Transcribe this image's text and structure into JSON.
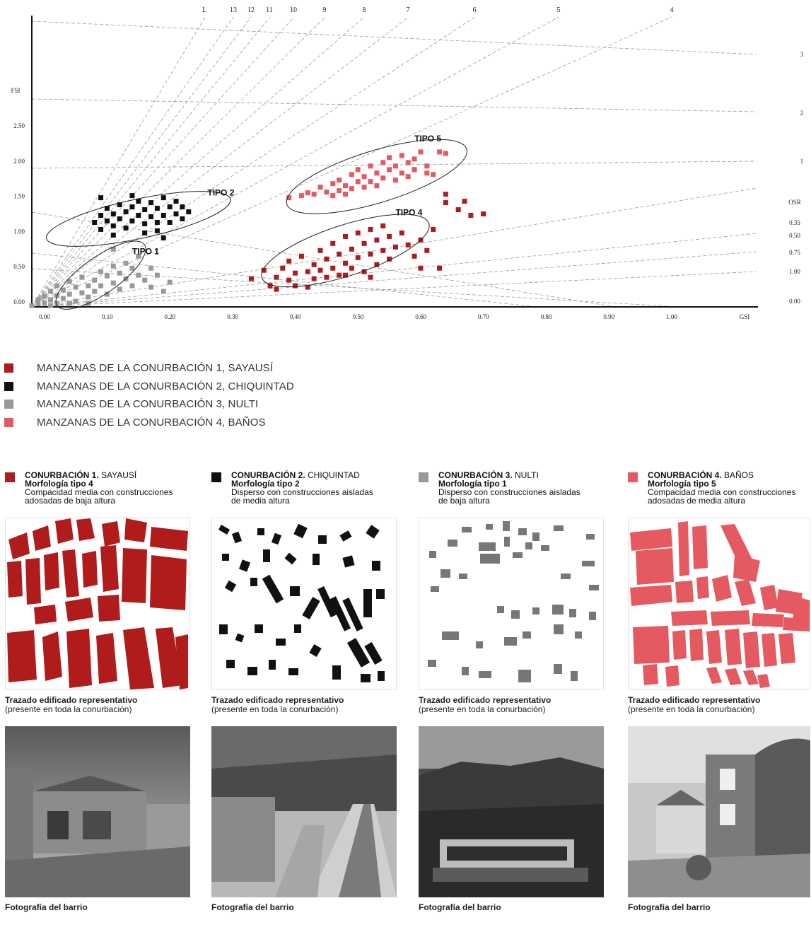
{
  "chart_data": {
    "type": "scatter",
    "xlabel": "GSI",
    "ylabel": "FSI",
    "xlim": [
      0,
      1.1
    ],
    "ylim": [
      0,
      2.5
    ],
    "x_ticks": [
      "0.00",
      "0.10",
      "0.20",
      "0.30",
      "0.40",
      "0.50",
      "0.60",
      "0.70",
      "0.80",
      "0.90",
      "1.00"
    ],
    "y_ticks": [
      "0.00",
      "0.50",
      "1.00",
      "1.50",
      "2.00",
      "2.50"
    ],
    "layer_label": "L",
    "layer_lines": [
      "13",
      "12",
      "11",
      "10",
      "9",
      "8",
      "7",
      "6",
      "5",
      "4"
    ],
    "osr_label": "OSR",
    "osr_lines": [
      "3",
      "2",
      "1",
      "0.35",
      "0.50",
      "0.75",
      "1.00",
      "0.00"
    ],
    "groups": [
      {
        "label": "TIPO 1",
        "center": [
          0.11,
          0.45
        ],
        "rx": 0.085,
        "ry": 0.26,
        "angle_deg": 35
      },
      {
        "label": "TIPO 2",
        "center": [
          0.17,
          1.25
        ],
        "rx": 0.15,
        "ry": 0.28,
        "angle_deg": 12
      },
      {
        "label": "TIPO 4",
        "center": [
          0.5,
          0.8
        ],
        "rx": 0.14,
        "ry": 0.36,
        "angle_deg": 18
      },
      {
        "label": "TIPO 5",
        "center": [
          0.55,
          1.85
        ],
        "rx": 0.15,
        "ry": 0.37,
        "angle_deg": 17
      }
    ],
    "series": [
      {
        "name": "MANZANAS DE LA CONURBACIÓN 1, SAYAUSÍ",
        "color": "#b01c1c",
        "points": [
          [
            0.35,
            0.4
          ],
          [
            0.37,
            0.52
          ],
          [
            0.38,
            0.3
          ],
          [
            0.39,
            0.42
          ],
          [
            0.39,
            0.25
          ],
          [
            0.4,
            0.55
          ],
          [
            0.41,
            0.38
          ],
          [
            0.41,
            0.65
          ],
          [
            0.42,
            0.48
          ],
          [
            0.42,
            0.3
          ],
          [
            0.43,
            0.72
          ],
          [
            0.44,
            0.5
          ],
          [
            0.44,
            0.28
          ],
          [
            0.45,
            0.6
          ],
          [
            0.45,
            0.4
          ],
          [
            0.46,
            0.8
          ],
          [
            0.46,
            0.52
          ],
          [
            0.47,
            0.42
          ],
          [
            0.47,
            0.68
          ],
          [
            0.48,
            0.9
          ],
          [
            0.48,
            0.55
          ],
          [
            0.49,
            0.45
          ],
          [
            0.49,
            0.75
          ],
          [
            0.5,
            1.0
          ],
          [
            0.5,
            0.62
          ],
          [
            0.5,
            0.45
          ],
          [
            0.51,
            0.82
          ],
          [
            0.51,
            0.55
          ],
          [
            0.52,
            1.05
          ],
          [
            0.52,
            0.7
          ],
          [
            0.53,
            0.5
          ],
          [
            0.53,
            0.9
          ],
          [
            0.54,
            1.1
          ],
          [
            0.54,
            0.75
          ],
          [
            0.54,
            0.42
          ],
          [
            0.55,
            0.6
          ],
          [
            0.55,
            0.95
          ],
          [
            0.56,
            0.8
          ],
          [
            0.56,
            1.15
          ],
          [
            0.57,
            0.68
          ],
          [
            0.57,
            1.0
          ],
          [
            0.58,
            0.85
          ],
          [
            0.59,
            1.05
          ],
          [
            0.6,
            0.88
          ],
          [
            0.61,
            0.72
          ],
          [
            0.62,
            0.95
          ],
          [
            0.63,
            0.8
          ],
          [
            0.64,
            1.1
          ],
          [
            0.62,
            0.55
          ],
          [
            0.65,
            0.55
          ],
          [
            0.66,
            1.6
          ],
          [
            0.66,
            1.48
          ],
          [
            0.68,
            1.38
          ],
          [
            0.69,
            1.5
          ],
          [
            0.7,
            1.3
          ],
          [
            0.72,
            1.32
          ]
        ]
      },
      {
        "name": "MANZANAS DE LA CONURBACIÓN 2, CHIQUINTAD",
        "color": "#111111",
        "points": [
          [
            0.1,
            1.2
          ],
          [
            0.11,
            1.3
          ],
          [
            0.11,
            1.1
          ],
          [
            0.12,
            1.4
          ],
          [
            0.12,
            1.22
          ],
          [
            0.13,
            1.32
          ],
          [
            0.13,
            1.15
          ],
          [
            0.14,
            1.45
          ],
          [
            0.14,
            1.25
          ],
          [
            0.15,
            1.35
          ],
          [
            0.15,
            1.12
          ],
          [
            0.16,
            1.42
          ],
          [
            0.16,
            1.22
          ],
          [
            0.17,
            1.3
          ],
          [
            0.17,
            1.5
          ],
          [
            0.18,
            1.18
          ],
          [
            0.18,
            1.38
          ],
          [
            0.19,
            1.28
          ],
          [
            0.19,
            1.48
          ],
          [
            0.2,
            1.2
          ],
          [
            0.2,
            1.4
          ],
          [
            0.21,
            1.3
          ],
          [
            0.21,
            1.55
          ],
          [
            0.22,
            1.2
          ],
          [
            0.22,
            1.42
          ],
          [
            0.23,
            1.32
          ],
          [
            0.23,
            1.5
          ],
          [
            0.24,
            1.25
          ],
          [
            0.24,
            1.42
          ],
          [
            0.25,
            1.35
          ],
          [
            0.13,
            1.02
          ],
          [
            0.2,
            1.08
          ],
          [
            0.21,
            0.98
          ],
          [
            0.11,
            1.55
          ],
          [
            0.16,
            1.58
          ],
          [
            0.18,
            1.05
          ]
        ]
      },
      {
        "name": "MANZANAS DE LA CONURBACIÓN 3, NULTI",
        "color": "#999999",
        "points": [
          [
            0.0,
            0.02
          ],
          [
            0.01,
            0.05
          ],
          [
            0.01,
            0.1
          ],
          [
            0.02,
            0.06
          ],
          [
            0.02,
            0.15
          ],
          [
            0.03,
            0.1
          ],
          [
            0.03,
            0.22
          ],
          [
            0.04,
            0.05
          ],
          [
            0.04,
            0.16
          ],
          [
            0.04,
            0.3
          ],
          [
            0.05,
            0.12
          ],
          [
            0.05,
            0.24
          ],
          [
            0.06,
            0.18
          ],
          [
            0.06,
            0.36
          ],
          [
            0.07,
            0.08
          ],
          [
            0.07,
            0.28
          ],
          [
            0.08,
            0.2
          ],
          [
            0.08,
            0.42
          ],
          [
            0.09,
            0.3
          ],
          [
            0.09,
            0.14
          ],
          [
            0.1,
            0.38
          ],
          [
            0.1,
            0.22
          ],
          [
            0.11,
            0.5
          ],
          [
            0.11,
            0.3
          ],
          [
            0.12,
            0.44
          ],
          [
            0.12,
            0.18
          ],
          [
            0.13,
            0.58
          ],
          [
            0.13,
            0.34
          ],
          [
            0.14,
            0.48
          ],
          [
            0.14,
            0.25
          ],
          [
            0.15,
            0.62
          ],
          [
            0.15,
            0.4
          ],
          [
            0.16,
            0.3
          ],
          [
            0.16,
            0.55
          ],
          [
            0.17,
            0.45
          ],
          [
            0.17,
            0.72
          ],
          [
            0.18,
            0.38
          ],
          [
            0.19,
            0.55
          ],
          [
            0.19,
            0.28
          ],
          [
            0.2,
            0.45
          ],
          [
            0.21,
            0.22
          ],
          [
            0.22,
            0.35
          ],
          [
            0.13,
            0.82
          ],
          [
            0.03,
            0.02
          ],
          [
            0.06,
            0.05
          ],
          [
            0.09,
            0.05
          ]
        ]
      },
      {
        "name": "MANZANAS DE LA CONURBACIÓN 4, BAÑOS",
        "color": "#e55a60",
        "points": [
          [
            0.41,
            1.55
          ],
          [
            0.43,
            1.58
          ],
          [
            0.44,
            1.62
          ],
          [
            0.45,
            1.6
          ],
          [
            0.46,
            1.7
          ],
          [
            0.47,
            1.63
          ],
          [
            0.48,
            1.75
          ],
          [
            0.48,
            1.58
          ],
          [
            0.49,
            1.8
          ],
          [
            0.49,
            1.65
          ],
          [
            0.5,
            1.72
          ],
          [
            0.5,
            1.6
          ],
          [
            0.51,
            1.88
          ],
          [
            0.51,
            1.68
          ],
          [
            0.52,
            1.78
          ],
          [
            0.52,
            1.95
          ],
          [
            0.53,
            1.7
          ],
          [
            0.53,
            1.85
          ],
          [
            0.54,
            2.0
          ],
          [
            0.54,
            1.78
          ],
          [
            0.55,
            1.9
          ],
          [
            0.55,
            1.72
          ],
          [
            0.56,
            2.05
          ],
          [
            0.56,
            1.83
          ],
          [
            0.57,
            1.95
          ],
          [
            0.57,
            2.12
          ],
          [
            0.58,
            1.8
          ],
          [
            0.58,
            2.0
          ],
          [
            0.59,
            2.15
          ],
          [
            0.59,
            1.9
          ],
          [
            0.6,
            2.05
          ],
          [
            0.6,
            1.85
          ],
          [
            0.61,
            2.1
          ],
          [
            0.61,
            1.95
          ],
          [
            0.62,
            2.2
          ],
          [
            0.63,
            2.0
          ],
          [
            0.63,
            1.9
          ],
          [
            0.65,
            2.2
          ],
          [
            0.66,
            2.18
          ],
          [
            0.64,
            1.88
          ]
        ]
      }
    ]
  },
  "legend": [
    {
      "color": "#b01c1c",
      "label": "MANZANAS DE LA CONURBACIÓN 1, SAYAUSÍ"
    },
    {
      "color": "#111111",
      "label": "MANZANAS DE LA CONURBACIÓN 2, CHIQUINTAD"
    },
    {
      "color": "#999999",
      "label": "MANZANAS DE LA CONURBACIÓN 3, NULTI"
    },
    {
      "color": "#e55a60",
      "label": "MANZANAS DE LA CONURBACIÓN 4, BAÑOS"
    }
  ],
  "conurbations": [
    {
      "color": "#b01c1c",
      "title_bold": "CONURBACIÓN 1.",
      "title_name": " SAYAUSÍ",
      "morphology": "Morfología tipo 4",
      "desc1": "Compacidad media con construcciones",
      "desc2": "adosadas de baja altura",
      "plan_title": "Trazado edificado representativo",
      "plan_sub": "(presente en toda la conurbación)",
      "photo_caption": "Fotografía del barrio"
    },
    {
      "color": "#111111",
      "title_bold": "CONURBACIÓN 2.",
      "title_name": " CHIQUINTAD",
      "morphology": "Morfología tipo 2",
      "desc1": "Disperso con construcciones aisladas",
      "desc2": "de media altura",
      "plan_title": "Trazado edificado representativo",
      "plan_sub": "(presente en toda la conurbación)",
      "photo_caption": "Fotografía del barrio"
    },
    {
      "color": "#999999",
      "title_bold": "CONURBACIÓN 3.",
      "title_name": " NULTI",
      "morphology": "Morfología tipo 1",
      "desc1": "Disperso con construcciones aisladas",
      "desc2": "de baja altura",
      "plan_title": "Trazado edificado representativo",
      "plan_sub": "(presente en toda la conurbación)",
      "photo_caption": "Fotografía del barrio"
    },
    {
      "color": "#e55a60",
      "title_bold": "CONURBACIÓN 4.",
      "title_name": " BAÑOS",
      "morphology": "Morfología tipo 5",
      "desc1": "Compacidad media con construcciones",
      "desc2": "adosadas de media altura",
      "plan_title": "Trazado edificado representativo",
      "plan_sub": "(presente en toda la conurbación)",
      "photo_caption": "Fotografía del barrio"
    }
  ]
}
